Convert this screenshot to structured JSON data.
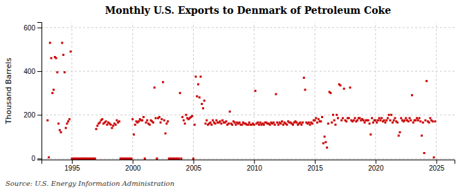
{
  "chart_data": {
    "type": "scatter",
    "title": "Monthly U.S. Exports to Denmark of Petroleum Coke",
    "ylabel": "Thousand Barrels",
    "annotations": [
      "Source: U.S. Energy Information Administration"
    ],
    "color": "#CC0000",
    "marker": "square",
    "grid": true,
    "xlim": [
      1992.5,
      2026.5
    ],
    "ylim": [
      -5,
      625
    ],
    "xticks": [
      1995,
      2000,
      2005,
      2010,
      2015,
      2020,
      2025
    ],
    "yticks": [
      0,
      200,
      400,
      600
    ],
    "x": [
      1993.0,
      1993.1,
      1993.2,
      1993.3,
      1993.4,
      1993.5,
      1993.6,
      1993.7,
      1993.8,
      1993.9,
      1994.0,
      1994.1,
      1994.2,
      1994.3,
      1994.4,
      1994.5,
      1994.6,
      1994.7,
      1994.8,
      1994.9,
      1995.0,
      1995.1,
      1995.2,
      1995.3,
      1995.4,
      1995.5,
      1995.6,
      1995.7,
      1995.8,
      1995.9,
      1995.95,
      1996.0,
      1996.1,
      1996.2,
      1996.3,
      1996.4,
      1996.5,
      1996.6,
      1996.7,
      1996.8,
      1996.9,
      1997.0,
      1997.1,
      1997.2,
      1997.3,
      1997.4,
      1997.5,
      1997.6,
      1997.7,
      1997.8,
      1997.9,
      1998.0,
      1998.1,
      1998.2,
      1998.3,
      1998.4,
      1998.5,
      1998.6,
      1998.7,
      1998.8,
      1998.9,
      1999.0,
      1999.1,
      1999.2,
      1999.3,
      1999.4,
      1999.5,
      1999.6,
      1999.7,
      1999.8,
      1999.9,
      2000.0,
      2000.1,
      2000.2,
      2000.3,
      2000.4,
      2000.5,
      2000.6,
      2000.7,
      2000.8,
      2000.9,
      2001.0,
      2001.1,
      2001.2,
      2001.3,
      2001.4,
      2001.5,
      2001.6,
      2001.7,
      2001.8,
      2001.9,
      2002.0,
      2002.1,
      2002.2,
      2002.3,
      2002.4,
      2002.5,
      2002.6,
      2002.7,
      2002.8,
      2002.9,
      2003.0,
      2003.1,
      2003.2,
      2003.3,
      2003.4,
      2003.5,
      2003.6,
      2003.7,
      2003.8,
      2003.9,
      2004.0,
      2004.1,
      2004.2,
      2004.3,
      2004.4,
      2004.5,
      2004.6,
      2004.7,
      2004.8,
      2004.9,
      2005.0,
      2005.1,
      2005.2,
      2005.3,
      2005.4,
      2005.5,
      2005.6,
      2005.7,
      2005.8,
      2005.9,
      2006.0,
      2006.1,
      2006.2,
      2006.3,
      2006.4,
      2006.5,
      2006.6,
      2006.7,
      2006.8,
      2006.9,
      2007.0,
      2007.1,
      2007.2,
      2007.3,
      2007.4,
      2007.5,
      2007.6,
      2007.7,
      2007.8,
      2007.9,
      2008.0,
      2008.1,
      2008.2,
      2008.3,
      2008.4,
      2008.5,
      2008.6,
      2008.7,
      2008.8,
      2008.9,
      2009.0,
      2009.1,
      2009.2,
      2009.3,
      2009.4,
      2009.5,
      2009.6,
      2009.7,
      2009.8,
      2009.9,
      2010.0,
      2010.1,
      2010.2,
      2010.3,
      2010.4,
      2010.5,
      2010.6,
      2010.7,
      2010.8,
      2010.9,
      2011.0,
      2011.1,
      2011.2,
      2011.3,
      2011.4,
      2011.5,
      2011.6,
      2011.7,
      2011.8,
      2011.9,
      2012.0,
      2012.1,
      2012.2,
      2012.3,
      2012.4,
      2012.5,
      2012.6,
      2012.7,
      2012.8,
      2012.9,
      2013.0,
      2013.1,
      2013.2,
      2013.3,
      2013.4,
      2013.5,
      2013.6,
      2013.7,
      2013.8,
      2013.9,
      2014.0,
      2014.1,
      2014.2,
      2014.3,
      2014.4,
      2014.5,
      2014.6,
      2014.7,
      2014.8,
      2014.9,
      2015.0,
      2015.1,
      2015.2,
      2015.3,
      2015.4,
      2015.5,
      2015.6,
      2015.7,
      2015.8,
      2015.9,
      2016.0,
      2016.1,
      2016.2,
      2016.3,
      2016.4,
      2016.5,
      2016.6,
      2016.7,
      2016.8,
      2016.9,
      2017.0,
      2017.1,
      2017.2,
      2017.3,
      2017.4,
      2017.5,
      2017.6,
      2017.7,
      2017.8,
      2017.9,
      2018.0,
      2018.1,
      2018.2,
      2018.3,
      2018.4,
      2018.5,
      2018.6,
      2018.7,
      2018.8,
      2018.9,
      2019.0,
      2019.1,
      2019.2,
      2019.3,
      2019.4,
      2019.5,
      2019.6,
      2019.7,
      2019.8,
      2019.9,
      2020.0,
      2020.1,
      2020.2,
      2020.3,
      2020.4,
      2020.5,
      2020.6,
      2020.7,
      2020.8,
      2020.9,
      2021.0,
      2021.1,
      2021.2,
      2021.3,
      2021.4,
      2021.5,
      2021.6,
      2021.7,
      2021.8,
      2021.9,
      2022.0,
      2022.1,
      2022.2,
      2022.3,
      2022.4,
      2022.5,
      2022.6,
      2022.7,
      2022.8,
      2022.9,
      2023.0,
      2023.1,
      2023.2,
      2023.3,
      2023.4,
      2023.5,
      2023.6,
      2023.7,
      2023.8,
      2023.9,
      2024.0,
      2024.1,
      2024.2,
      2024.3,
      2024.4,
      2024.5,
      2024.6,
      2024.7,
      2024.8,
      2024.9
    ],
    "values": [
      175,
      5,
      530,
      460,
      300,
      315,
      465,
      460,
      395,
      160,
      130,
      120,
      530,
      475,
      395,
      140,
      160,
      170,
      180,
      490,
      0,
      0,
      0,
      0,
      0,
      0,
      0,
      0,
      0,
      0,
      0,
      0,
      0,
      0,
      0,
      0,
      0,
      0,
      0,
      0,
      0,
      135,
      150,
      160,
      165,
      175,
      180,
      160,
      165,
      170,
      155,
      165,
      160,
      155,
      140,
      150,
      160,
      155,
      175,
      165,
      170,
      0,
      0,
      0,
      0,
      0,
      0,
      0,
      0,
      0,
      0,
      180,
      110,
      155,
      170,
      165,
      170,
      180,
      175,
      175,
      190,
      0,
      165,
      175,
      160,
      155,
      175,
      170,
      165,
      325,
      185,
      0,
      185,
      190,
      165,
      180,
      350,
      175,
      115,
      160,
      170,
      0,
      0,
      0,
      0,
      0,
      0,
      0,
      0,
      0,
      300,
      0,
      190,
      175,
      160,
      200,
      185,
      180,
      185,
      190,
      195,
      0,
      155,
      375,
      285,
      340,
      280,
      375,
      250,
      230,
      265,
      160,
      175,
      155,
      160,
      165,
      155,
      175,
      165,
      160,
      175,
      165,
      165,
      170,
      160,
      175,
      165,
      165,
      170,
      155,
      160,
      215,
      160,
      155,
      170,
      165,
      155,
      165,
      160,
      165,
      155,
      155,
      165,
      160,
      160,
      155,
      155,
      165,
      155,
      155,
      160,
      155,
      310,
      160,
      165,
      155,
      165,
      155,
      160,
      155,
      165,
      165,
      160,
      160,
      155,
      165,
      160,
      165,
      155,
      295,
      165,
      155,
      165,
      160,
      170,
      155,
      165,
      160,
      155,
      170,
      165,
      165,
      160,
      155,
      165,
      170,
      165,
      155,
      160,
      165,
      155,
      165,
      370,
      315,
      165,
      160,
      165,
      155,
      165,
      160,
      175,
      175,
      185,
      165,
      180,
      170,
      170,
      190,
      70,
      100,
      75,
      50,
      160,
      305,
      300,
      165,
      200,
      175,
      155,
      200,
      185,
      340,
      335,
      175,
      185,
      320,
      175,
      170,
      185,
      185,
      325,
      175,
      170,
      175,
      185,
      170,
      175,
      185,
      185,
      175,
      180,
      175,
      165,
      175,
      175,
      175,
      160,
      110,
      185,
      165,
      175,
      175,
      165,
      175,
      185,
      175,
      185,
      170,
      175,
      165,
      175,
      185,
      200,
      175,
      200,
      165,
      175,
      185,
      170,
      165,
      105,
      120,
      185,
      175,
      170,
      175,
      185,
      175,
      170,
      185,
      175,
      290,
      165,
      175,
      175,
      185,
      175,
      185,
      170,
      105,
      165,
      25,
      175,
      355,
      170,
      165,
      185,
      175,
      170,
      5,
      170
    ]
  }
}
